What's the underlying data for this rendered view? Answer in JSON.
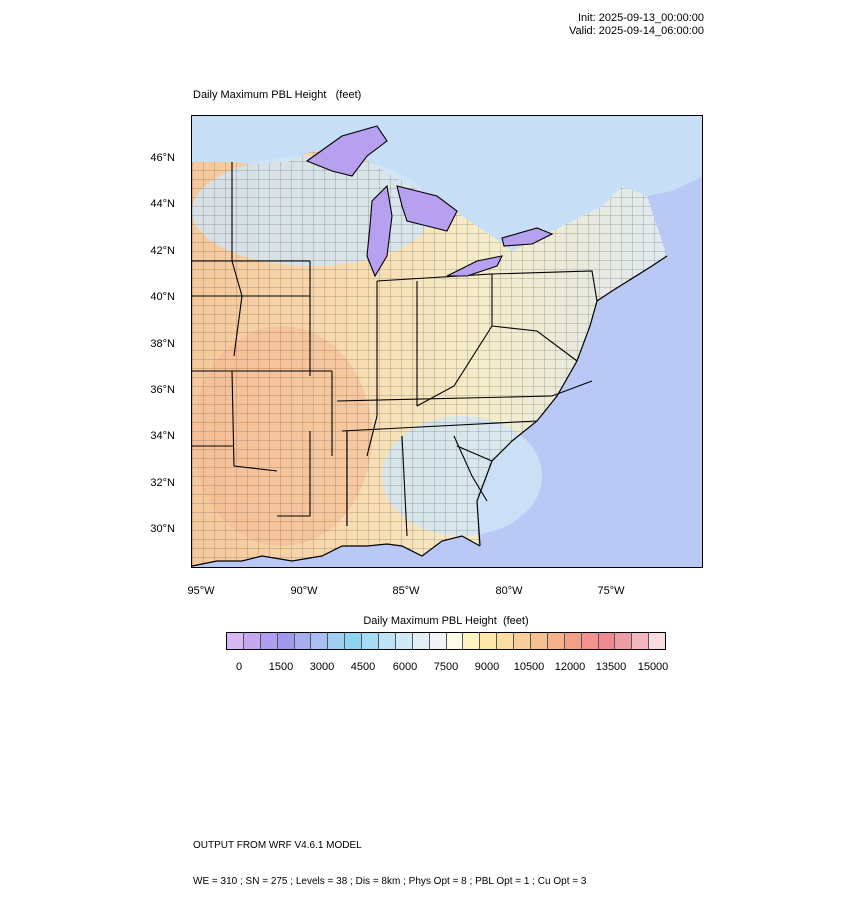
{
  "header": {
    "init": "Init: 2025-09-13_00:00:00",
    "valid": "Valid: 2025-09-14_06:00:00"
  },
  "map": {
    "title": "Daily Maximum PBL Height   (feet)",
    "lat_labels": [
      "46°N",
      "44°N",
      "42°N",
      "40°N",
      "38°N",
      "36°N",
      "34°N",
      "32°N",
      "30°N"
    ],
    "lon_labels": [
      "95°W",
      "90°W",
      "85°W",
      "80°W",
      "75°W"
    ],
    "colors": {
      "water_lake": "#b8a0f0",
      "ocean": "#b9c8f4",
      "land_cool": "#cfe6f6",
      "land_warm": "#f6dcae"
    }
  },
  "colorbar": {
    "title": "Daily Maximum PBL Height  (feet)",
    "labels": [
      "0",
      "1500",
      "3000",
      "4500",
      "6000",
      "7500",
      "9000",
      "10500",
      "12000",
      "13500",
      "15000"
    ],
    "colors": [
      "#d7b8f2",
      "#c5a6f0",
      "#b09cf0",
      "#9f98ee",
      "#a6aef0",
      "#a7bff2",
      "#a0ccf2",
      "#8cd4f2",
      "#a5dbf5",
      "#bde3f6",
      "#cfe8f5",
      "#e0eef6",
      "#eef4f7",
      "#fdfbe8",
      "#fff4c0",
      "#fdeaa8",
      "#fcdda0",
      "#f9cf98",
      "#f7c090",
      "#f6b08a",
      "#f4a088",
      "#f29390",
      "#ef8a90",
      "#ee9ca4",
      "#f2b6bc",
      "#f8dcdf"
    ]
  },
  "footer": {
    "line1": "OUTPUT FROM WRF V4.6.1 MODEL",
    "line2": "WE = 310 ; SN = 275 ; Levels = 38 ; Dis = 8km ; Phys Opt = 8 ; PBL Opt = 1 ; Cu Opt = 3"
  }
}
